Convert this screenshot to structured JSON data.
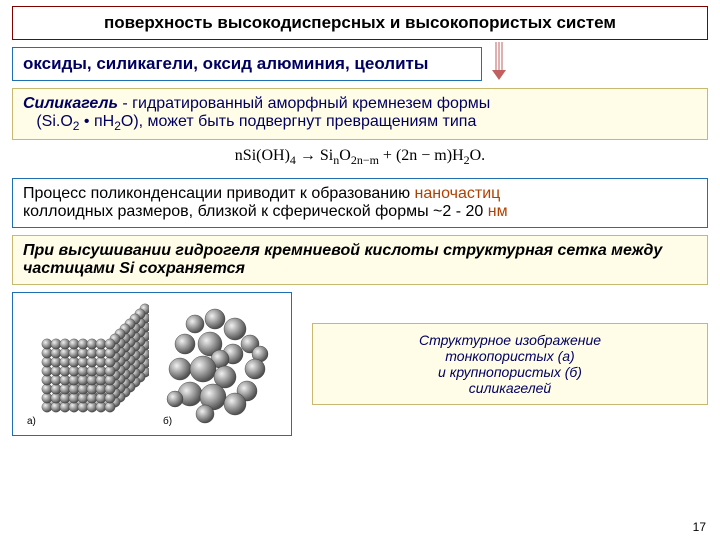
{
  "title": "поверхность высокодисперсных и высокопористых систем",
  "subtitle": "оксиды, силикагели, оксид алюминия, цеолиты",
  "definition": {
    "term": "Силикагель",
    "text1": " - гидратированный аморфный кремнезем формы",
    "text2": "(Si.O",
    "text2b": " • пH",
    "text2c": "O), может быть подвергнут превращениям типа"
  },
  "formula": {
    "lhs": "nSi(OH)",
    "lhs_sub": "4",
    "arrow": " → Si",
    "mid_sub1": "n",
    "mid": "O",
    "mid_sub2": "2n−m",
    "rhs": " + (2n − m)H",
    "rhs_sub": "2",
    "rhs_end": "O."
  },
  "process": {
    "line1a": "Процесс поликонденсации приводит к образованию ",
    "nano": "наночастиц",
    "line2": "коллоидных размеров, близкой к сферической формы ~2 - 20 ",
    "nm": "нм"
  },
  "drying": "При высушивании гидрогеля кремниевой кислоты структурная сетка между частицами Si сохраняется",
  "caption": {
    "l1": "Структурное изображение",
    "l2": "тонкопористых (а)",
    "l3": "и крупнопористых (б)",
    "l4": "силикагелей"
  },
  "labels": {
    "a": "а)",
    "b": "б)"
  },
  "page": "17",
  "colors": {
    "sphere_light": "#d8d8d8",
    "sphere_dark": "#606060"
  }
}
